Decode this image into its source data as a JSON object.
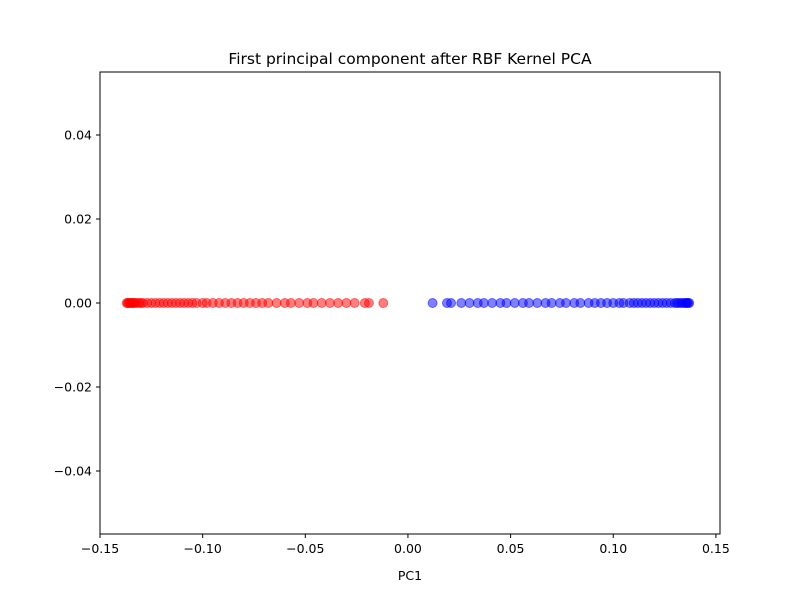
{
  "chart_data": {
    "type": "scatter",
    "title": "First principal component after RBF Kernel PCA",
    "xlabel": "PC1",
    "ylabel": "",
    "xlim": [
      -0.15,
      0.152
    ],
    "ylim": [
      -0.055,
      0.055
    ],
    "grid": false,
    "xticks": [
      -0.15,
      -0.1,
      -0.05,
      0.0,
      0.05,
      0.1,
      0.15
    ],
    "xtick_labels": [
      "−0.15",
      "−0.10",
      "−0.05",
      "0.00",
      "0.05",
      "0.10",
      "0.15"
    ],
    "yticks": [
      -0.04,
      -0.02,
      0.0,
      0.02,
      0.04
    ],
    "ytick_labels": [
      "−0.04",
      "−0.02",
      "0.00",
      "0.02",
      "0.04"
    ],
    "marker_alpha": 0.5,
    "series": [
      {
        "color": "#ff0000",
        "x": [
          -0.137,
          -0.1365,
          -0.136,
          -0.1355,
          -0.135,
          -0.1345,
          -0.134,
          -0.1335,
          -0.133,
          -0.132,
          -0.131,
          -0.13,
          -0.129,
          -0.127,
          -0.125,
          -0.123,
          -0.121,
          -0.119,
          -0.117,
          -0.115,
          -0.113,
          -0.111,
          -0.109,
          -0.107,
          -0.105,
          -0.103,
          -0.1,
          -0.098,
          -0.095,
          -0.092,
          -0.089,
          -0.086,
          -0.083,
          -0.08,
          -0.077,
          -0.074,
          -0.071,
          -0.068,
          -0.064,
          -0.06,
          -0.057,
          -0.053,
          -0.049,
          -0.046,
          -0.042,
          -0.038,
          -0.034,
          -0.03,
          -0.026,
          -0.021,
          -0.019,
          -0.012
        ],
        "y": [
          0,
          0,
          0,
          0,
          0,
          0,
          0,
          0,
          0,
          0,
          0,
          0,
          0,
          0,
          0,
          0,
          0,
          0,
          0,
          0,
          0,
          0,
          0,
          0,
          0,
          0,
          0,
          0,
          0,
          0,
          0,
          0,
          0,
          0,
          0,
          0,
          0,
          0,
          0,
          0,
          0,
          0,
          0,
          0,
          0,
          0,
          0,
          0,
          0,
          0,
          0,
          0
        ]
      },
      {
        "color": "#0000ff",
        "x": [
          0.012,
          0.019,
          0.021,
          0.026,
          0.03,
          0.034,
          0.037,
          0.041,
          0.045,
          0.048,
          0.052,
          0.056,
          0.059,
          0.063,
          0.067,
          0.07,
          0.074,
          0.077,
          0.081,
          0.084,
          0.088,
          0.091,
          0.094,
          0.097,
          0.1,
          0.103,
          0.105,
          0.108,
          0.11,
          0.112,
          0.114,
          0.116,
          0.118,
          0.12,
          0.122,
          0.124,
          0.126,
          0.128,
          0.13,
          0.131,
          0.132,
          0.133,
          0.134,
          0.135,
          0.1355,
          0.136,
          0.1365,
          0.137
        ],
        "y": [
          0,
          0,
          0,
          0,
          0,
          0,
          0,
          0,
          0,
          0,
          0,
          0,
          0,
          0,
          0,
          0,
          0,
          0,
          0,
          0,
          0,
          0,
          0,
          0,
          0,
          0,
          0,
          0,
          0,
          0,
          0,
          0,
          0,
          0,
          0,
          0,
          0,
          0,
          0,
          0,
          0,
          0,
          0,
          0,
          0,
          0,
          0,
          0
        ]
      }
    ]
  }
}
